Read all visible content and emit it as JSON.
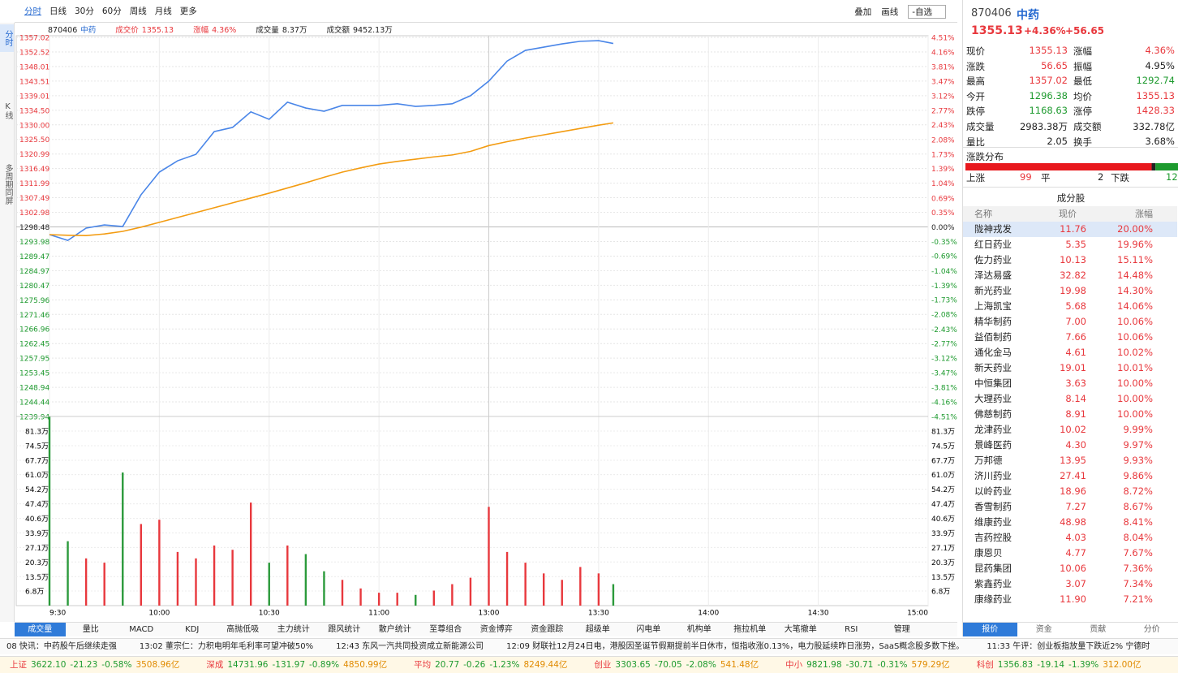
{
  "toolbar": {
    "tabs": [
      "分时",
      "日线",
      "30分",
      "60分",
      "周线",
      "月线",
      "更多"
    ],
    "right": [
      "叠加",
      "画线",
      "-自选"
    ]
  },
  "side_tabs": [
    "分时",
    "K线",
    "多周期同屏"
  ],
  "chart_header": [
    [
      "870406",
      "中药"
    ],
    [
      "成交价",
      "1355.13"
    ],
    [
      "涨幅",
      "4.36%"
    ],
    [
      "成交量",
      "8.37万"
    ],
    [
      "成交额",
      "9452.13万"
    ]
  ],
  "chart_data": [
    {
      "type": "line",
      "x": [
        "9:30",
        "9:35",
        "9:40",
        "9:45",
        "9:50",
        "9:55",
        "10:00",
        "10:05",
        "10:10",
        "10:15",
        "10:20",
        "10:25",
        "10:30",
        "10:35",
        "10:40",
        "10:45",
        "10:50",
        "10:55",
        "11:00",
        "11:05",
        "11:10",
        "11:15",
        "11:20",
        "11:25",
        "13:00",
        "13:05",
        "13:10",
        "13:15",
        "13:20",
        "13:25",
        "13:30",
        "13:34"
      ],
      "series": [
        {
          "color": "#4a86e8",
          "values": [
            1296.1,
            1294.3,
            1298.1,
            1299.1,
            1298.6,
            1308.4,
            1315.4,
            1318.9,
            1320.9,
            1327.9,
            1329.2,
            1334.0,
            1331.7,
            1337.0,
            1335.2,
            1334.2,
            1336.0,
            1336.0,
            1336.0,
            1336.5,
            1335.7,
            1336.0,
            1336.5,
            1339.0,
            1343.5,
            1349.7,
            1353.0,
            1354.0,
            1355.0,
            1355.8,
            1356.0,
            1355.13
          ]
        },
        {
          "color": "#f39c12",
          "values": [
            1296.1,
            1295.9,
            1295.8,
            1296.3,
            1297.1,
            1298.4,
            1299.9,
            1301.4,
            1302.9,
            1304.4,
            1305.9,
            1307.4,
            1308.9,
            1310.5,
            1312.1,
            1313.8,
            1315.4,
            1316.7,
            1317.9,
            1318.7,
            1319.4,
            1320.1,
            1320.7,
            1321.8,
            1323.6,
            1324.8,
            1325.9,
            1326.9,
            1327.9,
            1328.9,
            1329.9,
            1330.6
          ]
        }
      ],
      "ylim": [
        1239.94,
        1357.02
      ],
      "yticks": [
        1357.02,
        1352.52,
        1348.01,
        1343.51,
        1339.01,
        {
          "value": 1334.5,
          "label": "1334.50"
        },
        {
          "value": 1330,
          "label": "1330.00"
        },
        {
          "value": 1325.5,
          "label": "1325.50"
        },
        1320.99,
        1316.49,
        1311.99,
        1307.49,
        1302.98,
        1298.48,
        1293.98,
        1289.47,
        1284.97,
        1280.47,
        1275.96,
        1271.46,
        1266.96,
        1262.45,
        1257.95,
        1253.45,
        1248.94,
        1244.44,
        1239.94
      ],
      "y2lim": [
        -4.51,
        4.51
      ],
      "y2ticks": [
        {
          "value": 4.51,
          "label": "4.51%"
        },
        {
          "value": 4.16,
          "label": "4.16%"
        },
        {
          "value": 3.81,
          "label": "3.81%"
        },
        {
          "value": 3.47,
          "label": "3.47%"
        },
        {
          "value": 3.12,
          "label": "3.12%"
        },
        {
          "value": 2.77,
          "label": "2.77%"
        },
        {
          "value": 2.43,
          "label": "2.43%"
        },
        {
          "value": 2.08,
          "label": "2.08%"
        },
        {
          "value": 1.73,
          "label": "1.73%"
        },
        {
          "value": 1.39,
          "label": "1.39%"
        },
        {
          "value": 1.04,
          "label": "1.04%"
        },
        {
          "value": 0.69,
          "label": "0.69%"
        },
        {
          "value": 0.35,
          "label": "0.35%"
        },
        {
          "value": 0,
          "label": "0.00%"
        },
        {
          "value": -0.35,
          "label": "-0.35%"
        },
        {
          "value": -0.69,
          "label": "-0.69%"
        },
        {
          "value": -1.04,
          "label": "-1.04%"
        },
        {
          "value": -1.39,
          "label": "-1.39%"
        },
        {
          "value": -1.73,
          "label": "-1.73%"
        },
        {
          "value": -2.08,
          "label": "-2.08%"
        },
        {
          "value": -2.43,
          "label": "-2.43%"
        },
        {
          "value": -2.77,
          "label": "-2.77%"
        },
        {
          "value": -3.12,
          "label": "-3.12%"
        },
        {
          "value": -3.47,
          "label": "-3.47%"
        },
        {
          "value": -3.81,
          "label": "-3.81%"
        },
        {
          "value": -4.16,
          "label": "-4.16%"
        },
        {
          "value": -4.51,
          "label": "-4.51%"
        }
      ],
      "xticks": [
        "9:30",
        "10:00",
        "10:30",
        "11:00",
        "13:00",
        "13:30",
        "14:00",
        "14:30",
        "15:00"
      ],
      "grid": true
    },
    {
      "type": "bar",
      "x": [
        "9:30",
        "9:35",
        "9:40",
        "9:45",
        "9:50",
        "9:55",
        "10:00",
        "10:05",
        "10:10",
        "10:15",
        "10:20",
        "10:25",
        "10:30",
        "10:35",
        "10:40",
        "10:45",
        "10:50",
        "10:55",
        "11:00",
        "11:05",
        "11:10",
        "11:15",
        "11:20",
        "11:25",
        "13:00",
        "13:05",
        "13:10",
        "13:15",
        "13:20",
        "13:25",
        "13:30",
        "13:34"
      ],
      "values": [
        88.0,
        30,
        22,
        20,
        62,
        38,
        40,
        25,
        22,
        28,
        26,
        48,
        20,
        28,
        24,
        16,
        12,
        8,
        6,
        6,
        5,
        7,
        10,
        13,
        46,
        25,
        20,
        15,
        12,
        18,
        15,
        10
      ],
      "colors": [
        "#2b9a3b",
        "#2b9a3b",
        "#e8383d",
        "#e8383d",
        "#2b9a3b",
        "#e8383d",
        "#e8383d",
        "#e8383d",
        "#e8383d",
        "#e8383d",
        "#e8383d",
        "#e8383d",
        "#2b9a3b",
        "#e8383d",
        "#2b9a3b",
        "#2b9a3b",
        "#e8383d",
        "#e8383d",
        "#e8383d",
        "#e8383d",
        "#2b9a3b",
        "#e8383d",
        "#e8383d",
        "#e8383d",
        "#e8383d",
        "#e8383d",
        "#e8383d",
        "#e8383d",
        "#e8383d",
        "#e8383d",
        "#e8383d",
        "#2b9a3b"
      ],
      "ylim": [
        0,
        88.1
      ],
      "yticks": [
        {
          "value": 81.3,
          "label": "81.3万"
        },
        {
          "value": 74.5,
          "label": "74.5万"
        },
        {
          "value": 67.7,
          "label": "67.7万"
        },
        {
          "value": 61.0,
          "label": "61.0万"
        },
        {
          "value": 54.2,
          "label": "54.2万"
        },
        {
          "value": 47.4,
          "label": "47.4万"
        },
        {
          "value": 40.6,
          "label": "40.6万"
        },
        {
          "value": 33.9,
          "label": "33.9万"
        },
        {
          "value": 27.1,
          "label": "27.1万"
        },
        {
          "value": 20.3,
          "label": "20.3万"
        },
        {
          "value": 13.5,
          "label": "13.5万"
        },
        {
          "value": 6.8,
          "label": "6.8万"
        }
      ],
      "grid": true
    }
  ],
  "bottom_tabs": [
    "成交量",
    "量比",
    "MACD",
    "KDJ",
    "高抛低吸",
    "主力统计",
    "跟风统计",
    "散户统计",
    "至尊组合",
    "资金博弈",
    "资金跟踪",
    "超级单",
    "闪电单",
    "机构单",
    "拖拉机单",
    "大笔撤单",
    "RSI",
    "管理"
  ],
  "quote": {
    "code": "870406",
    "name": "中药",
    "price": "1355.13",
    "pct": "+4.36%",
    "change": "+56.65",
    "rows": [
      [
        "现价",
        "1355.13",
        "涨幅",
        "4.36%"
      ],
      [
        "涨跌",
        "56.65",
        "振幅",
        "4.95%"
      ],
      [
        "最高",
        "1357.02",
        "最低",
        "1292.74"
      ],
      [
        "今开",
        "1296.38",
        "均价",
        "1355.13"
      ],
      [
        "跌停",
        "1168.63",
        "涨停",
        "1428.33"
      ],
      [
        "成交量",
        "2983.38万",
        "成交额",
        "332.78亿"
      ],
      [
        "量比",
        "2.05",
        "换手",
        "3.68%"
      ]
    ]
  },
  "distribution": {
    "title": "涨跌分布",
    "up_label": "上涨",
    "up": 99,
    "flat_label": "平",
    "flat": 2,
    "down_label": "下跌",
    "down": 12
  },
  "constituents": {
    "title": "成分股",
    "columns": [
      "名称",
      "现价",
      "涨幅"
    ],
    "rows": [
      [
        "陇神戎发",
        "11.76",
        "20.00%"
      ],
      [
        "红日药业",
        "5.35",
        "19.96%"
      ],
      [
        "佐力药业",
        "10.13",
        "15.11%"
      ],
      [
        "泽达易盛",
        "32.82",
        "14.48%"
      ],
      [
        "新光药业",
        "19.98",
        "14.30%"
      ],
      [
        "上海凯宝",
        "5.68",
        "14.06%"
      ],
      [
        "精华制药",
        "7.00",
        "10.06%"
      ],
      [
        "益佰制药",
        "7.66",
        "10.06%"
      ],
      [
        "通化金马",
        "4.61",
        "10.02%"
      ],
      [
        "新天药业",
        "19.01",
        "10.01%"
      ],
      [
        "中恒集团",
        "3.63",
        "10.00%"
      ],
      [
        "大理药业",
        "8.14",
        "10.00%"
      ],
      [
        "佛慈制药",
        "8.91",
        "10.00%"
      ],
      [
        "龙津药业",
        "10.02",
        "9.99%"
      ],
      [
        "景峰医药",
        "4.30",
        "9.97%"
      ],
      [
        "万邦德",
        "13.95",
        "9.93%"
      ],
      [
        "济川药业",
        "27.41",
        "9.86%"
      ],
      [
        "以岭药业",
        "18.96",
        "8.72%"
      ],
      [
        "香雪制药",
        "7.27",
        "8.67%"
      ],
      [
        "维康药业",
        "48.98",
        "8.41%"
      ],
      [
        "吉药控股",
        "4.03",
        "8.04%"
      ],
      [
        "康恩贝",
        "4.77",
        "7.67%"
      ],
      [
        "昆药集团",
        "10.06",
        "7.36%"
      ],
      [
        "紫鑫药业",
        "3.07",
        "7.34%"
      ],
      [
        "康缘药业",
        "11.90",
        "7.21%"
      ]
    ]
  },
  "panel_tabs": [
    "报价",
    "资金",
    "贡献",
    "分价"
  ],
  "news": [
    "08 快讯：中药股午后继续走强",
    "13:02 董宗仁：力积电明年毛利率可望冲破50%",
    "12:43 东风一汽共同投资成立新能源公司",
    "12:09 财联社12月24日电，港股因圣诞节假期提前半日休市，恒指收涨0.13%，电力股延续昨日涨势，SaaS概念股多数下挫。",
    "11:33 午评：创业板指放量下跌近2% 宁德时"
  ],
  "indices": [
    [
      "上证",
      "3622.10",
      "-21.23",
      "-0.58%",
      "3508.96亿"
    ],
    [
      "深成",
      "14731.96",
      "-131.97",
      "-0.89%",
      "4850.99亿"
    ],
    [
      "平均",
      "20.77",
      "-0.26",
      "-1.23%",
      "8249.44亿"
    ],
    [
      "创业",
      "3303.65",
      "-70.05",
      "-2.08%",
      "541.48亿"
    ],
    [
      "中小",
      "9821.98",
      "-30.71",
      "-0.31%",
      "579.29亿"
    ],
    [
      "科创",
      "1356.83",
      "-19.14",
      "-1.39%",
      "312.00亿"
    ]
  ]
}
